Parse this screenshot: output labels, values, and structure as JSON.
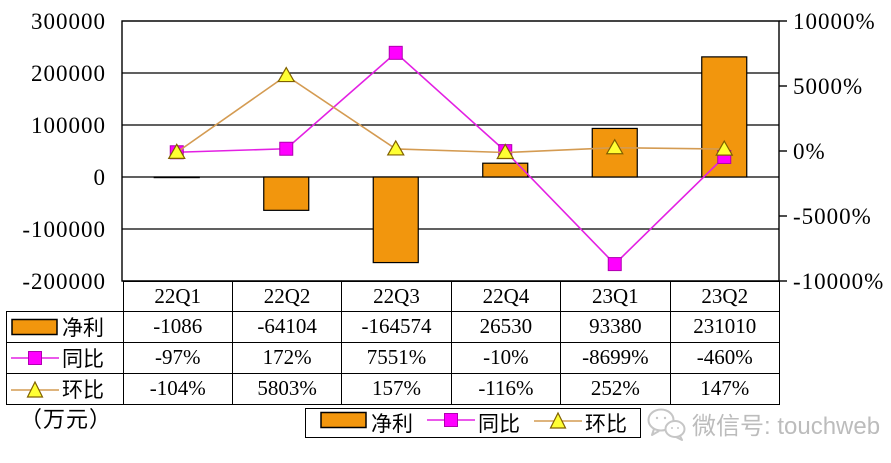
{
  "chart_data": {
    "type": "combo",
    "title": "",
    "categories": [
      "22Q1",
      "22Q2",
      "22Q3",
      "22Q4",
      "23Q1",
      "23Q2"
    ],
    "series": [
      {
        "name": "净利",
        "type": "bar",
        "axis": "left",
        "values": [
          -1086,
          -64104,
          -164574,
          26530,
          93380,
          231010
        ],
        "color": "#F2960D",
        "border_color": "#000000"
      },
      {
        "name": "同比",
        "type": "line",
        "axis": "right",
        "marker": "square",
        "values": [
          -97,
          172,
          7551,
          -10,
          -8699,
          -460
        ],
        "line_color": "#E320E3",
        "marker_fill": "#FF00FF",
        "marker_border": "#B000B0"
      },
      {
        "name": "环比",
        "type": "line",
        "axis": "right",
        "marker": "triangle",
        "values": [
          -104,
          5803,
          157,
          -116,
          252,
          147
        ],
        "line_color": "#D49B52",
        "marker_fill": "#FFFF33",
        "marker_border": "#806000"
      }
    ],
    "left_axis": {
      "min": -200000,
      "max": 300000,
      "step": 100000,
      "tick_values": [
        300000,
        200000,
        100000,
        0,
        -100000,
        -200000
      ],
      "tick_labels": [
        "300000",
        "200000",
        "100000",
        "0",
        "-100000",
        "-200000"
      ]
    },
    "right_axis": {
      "min": -10000,
      "max": 10000,
      "step": 5000,
      "tick_values": [
        10000,
        5000,
        0,
        -5000,
        -10000
      ],
      "tick_labels": [
        "10000%",
        "5000%",
        "0%",
        "-5000%",
        "-10000%"
      ]
    },
    "grid": true,
    "legend_position": "bottom",
    "unit_label": "（万元）"
  },
  "table": {
    "columns": [
      "22Q1",
      "22Q2",
      "22Q3",
      "22Q4",
      "23Q1",
      "23Q2"
    ],
    "rows": [
      {
        "label": "净利",
        "icon": "bar",
        "values": [
          "-1086",
          "-64104",
          "-164574",
          "26530",
          "93380",
          "231010"
        ]
      },
      {
        "label": "同比",
        "icon": "square",
        "values": [
          "-97%",
          "172%",
          "7551%",
          "-10%",
          "-8699%",
          "-460%"
        ]
      },
      {
        "label": "环比",
        "icon": "triangle",
        "values": [
          "-104%",
          "5803%",
          "157%",
          "-116%",
          "252%",
          "147%"
        ]
      }
    ]
  },
  "legend": {
    "items": [
      {
        "label": "净利",
        "icon": "bar"
      },
      {
        "label": "同比",
        "icon": "square"
      },
      {
        "label": "环比",
        "icon": "triangle"
      }
    ]
  },
  "watermark": {
    "text": "微信号: touchweb"
  }
}
